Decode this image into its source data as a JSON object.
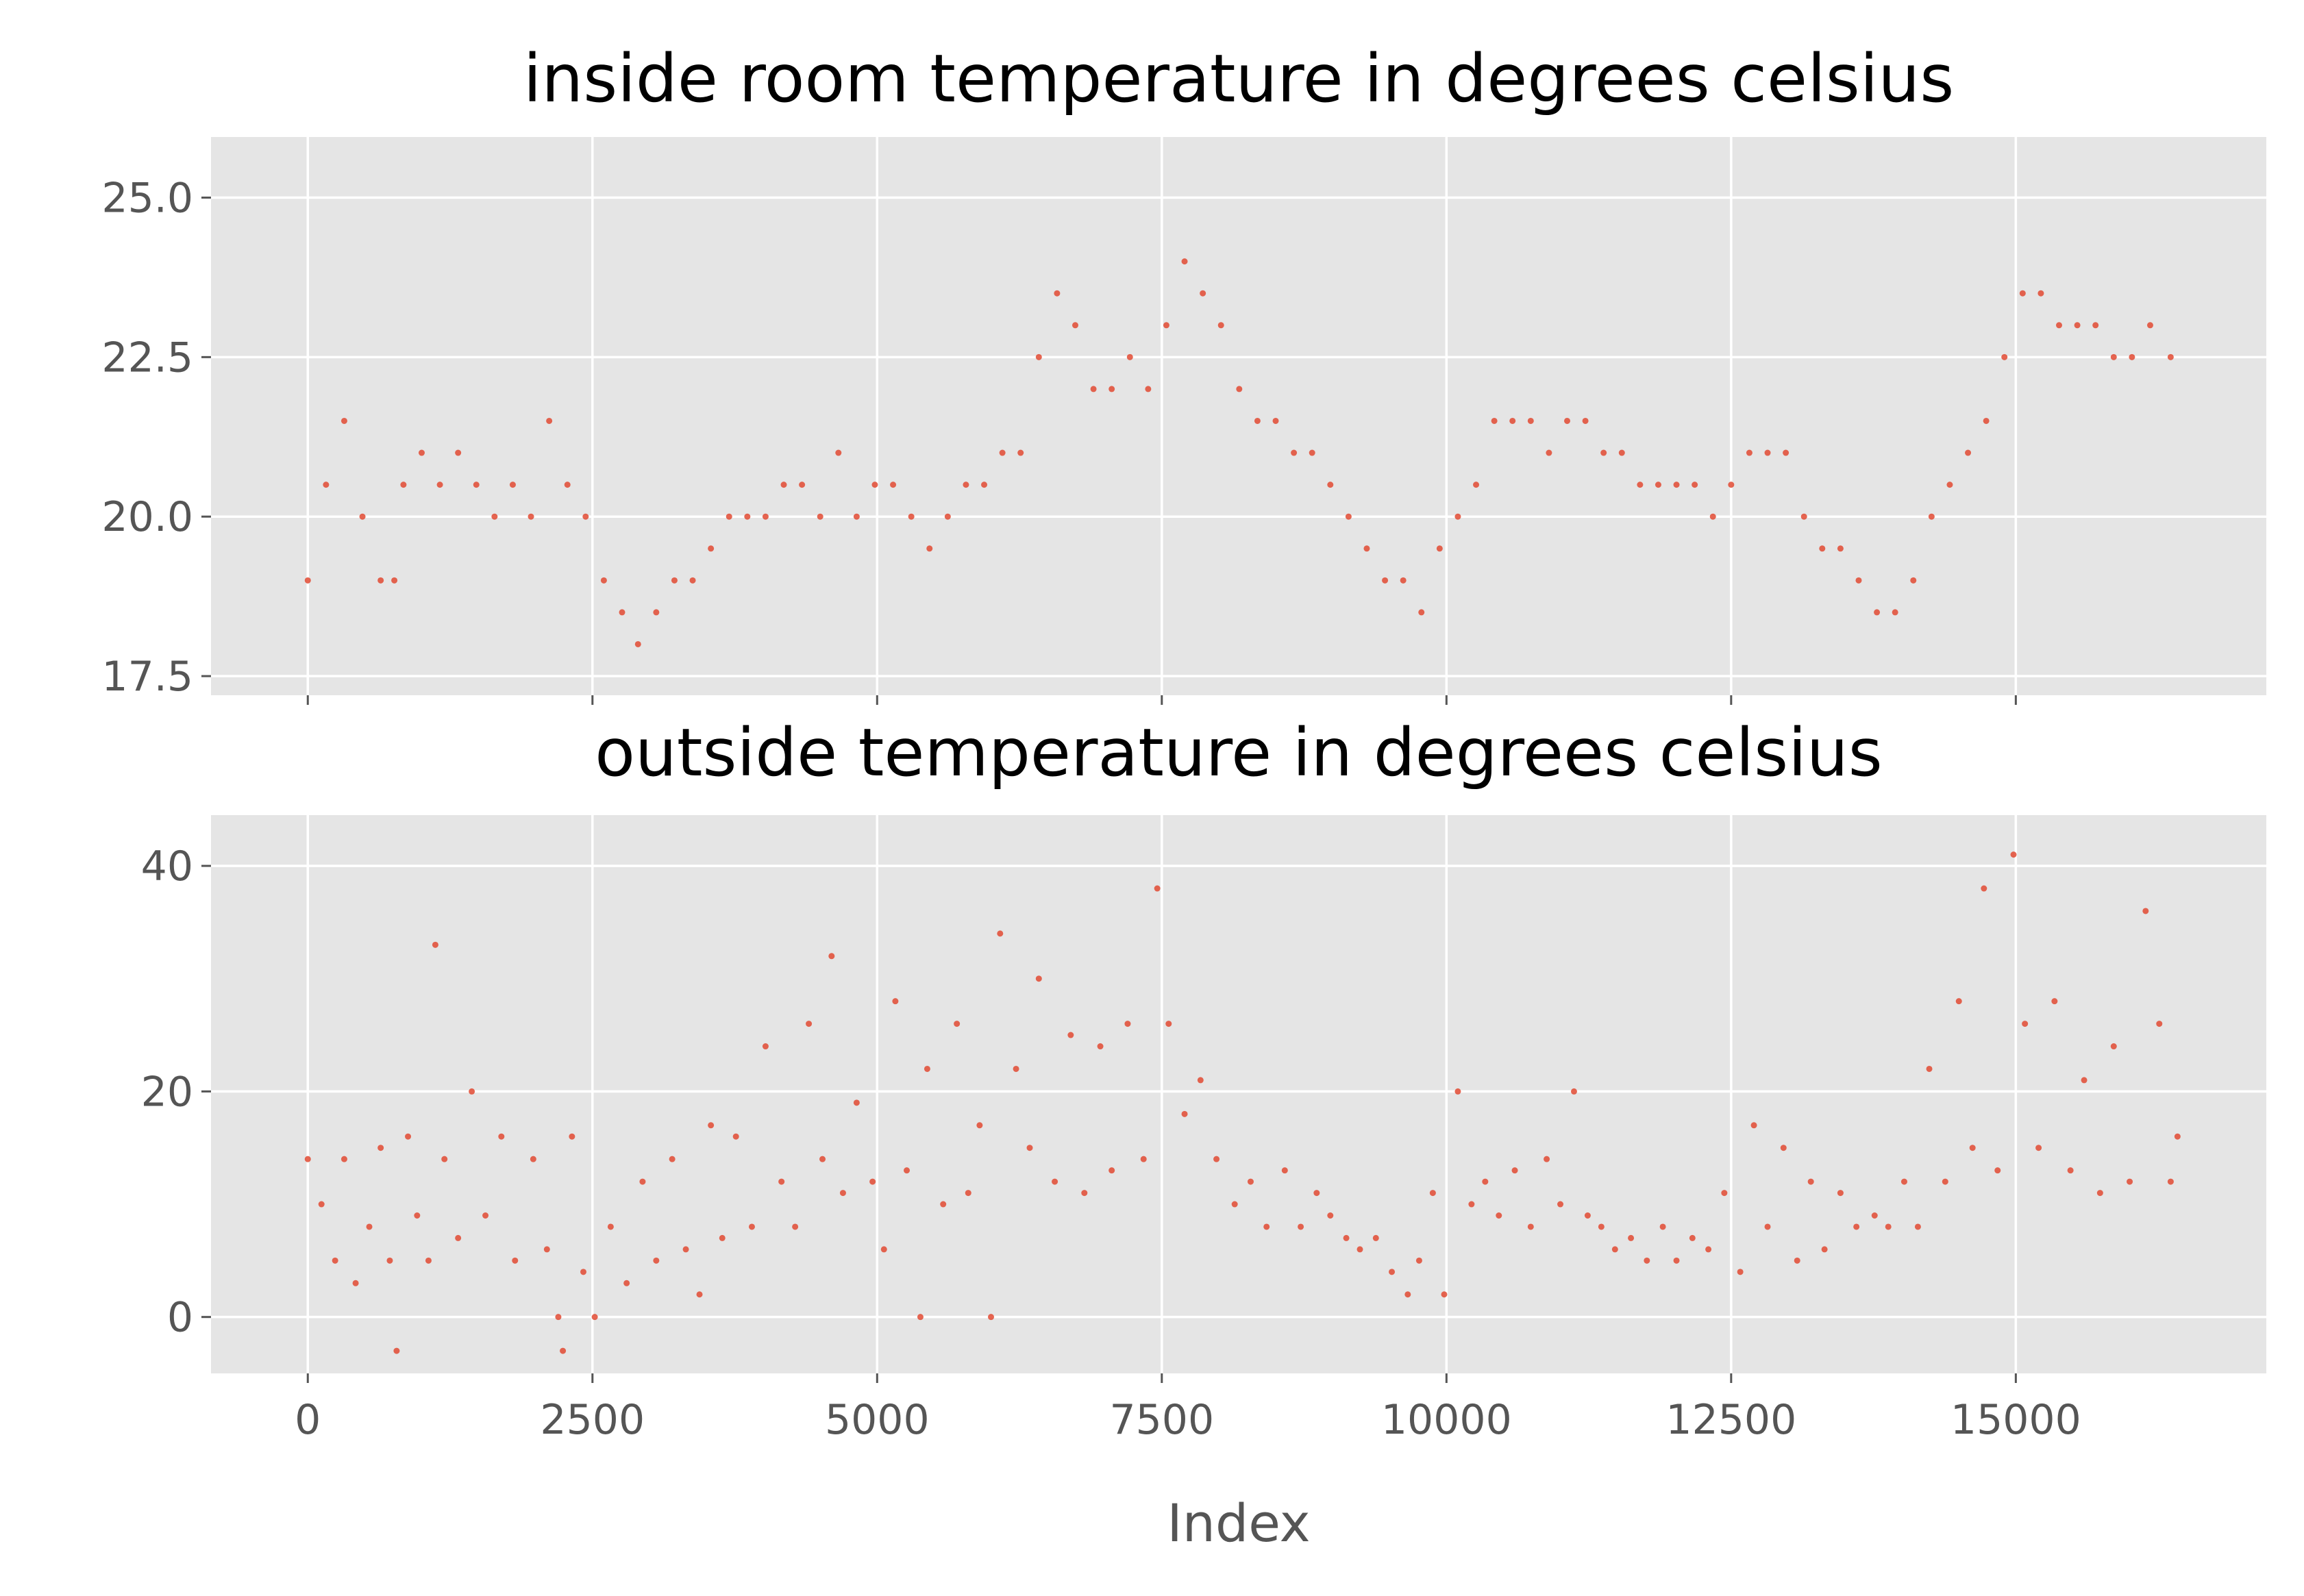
{
  "chart_data": [
    {
      "type": "scatter",
      "title": "inside room temperature in degrees celsius",
      "xlabel": "",
      "ylabel": "",
      "xlim": [
        -850,
        17200
      ],
      "ylim": [
        17.2,
        25.95
      ],
      "yticks": [
        "17.5",
        "20.0",
        "22.5",
        "25.0"
      ],
      "xticks": [
        0,
        2500,
        5000,
        7500,
        10000,
        12500,
        15000
      ],
      "grid": true,
      "marker_color": "#E24A33",
      "points": [
        [
          0,
          19.0
        ],
        [
          160,
          20.5
        ],
        [
          320,
          21.5
        ],
        [
          480,
          20.0
        ],
        [
          640,
          19.0
        ],
        [
          760,
          19.0
        ],
        [
          840,
          20.5
        ],
        [
          1000,
          21.0
        ],
        [
          1160,
          20.5
        ],
        [
          1320,
          21.0
        ],
        [
          1480,
          20.5
        ],
        [
          1640,
          20.0
        ],
        [
          1800,
          20.5
        ],
        [
          1960,
          20.0
        ],
        [
          2120,
          21.5
        ],
        [
          2280,
          20.5
        ],
        [
          2440,
          20.0
        ],
        [
          2600,
          19.0
        ],
        [
          2760,
          18.5
        ],
        [
          2900,
          18.0
        ],
        [
          3060,
          18.5
        ],
        [
          3220,
          19.0
        ],
        [
          3380,
          19.0
        ],
        [
          3540,
          19.5
        ],
        [
          3700,
          20.0
        ],
        [
          3860,
          20.0
        ],
        [
          4020,
          20.0
        ],
        [
          4180,
          20.5
        ],
        [
          4340,
          20.5
        ],
        [
          4500,
          20.0
        ],
        [
          4660,
          21.0
        ],
        [
          4820,
          20.0
        ],
        [
          4980,
          20.5
        ],
        [
          5140,
          20.5
        ],
        [
          5300,
          20.0
        ],
        [
          5460,
          19.5
        ],
        [
          5620,
          20.0
        ],
        [
          5780,
          20.5
        ],
        [
          5940,
          20.5
        ],
        [
          6100,
          21.0
        ],
        [
          6260,
          21.0
        ],
        [
          6420,
          22.5
        ],
        [
          6580,
          23.5
        ],
        [
          6740,
          23.0
        ],
        [
          6900,
          22.0
        ],
        [
          7060,
          22.0
        ],
        [
          7220,
          22.5
        ],
        [
          7380,
          22.0
        ],
        [
          7540,
          23.0
        ],
        [
          7700,
          24.0
        ],
        [
          7860,
          23.5
        ],
        [
          8020,
          23.0
        ],
        [
          8180,
          22.0
        ],
        [
          8340,
          21.5
        ],
        [
          8500,
          21.5
        ],
        [
          8660,
          21.0
        ],
        [
          8820,
          21.0
        ],
        [
          8980,
          20.5
        ],
        [
          9140,
          20.0
        ],
        [
          9300,
          19.5
        ],
        [
          9460,
          19.0
        ],
        [
          9620,
          19.0
        ],
        [
          9780,
          18.5
        ],
        [
          9940,
          19.5
        ],
        [
          10100,
          20.0
        ],
        [
          10260,
          20.5
        ],
        [
          10420,
          21.5
        ],
        [
          10580,
          21.5
        ],
        [
          10740,
          21.5
        ],
        [
          10900,
          21.0
        ],
        [
          11060,
          21.5
        ],
        [
          11220,
          21.5
        ],
        [
          11380,
          21.0
        ],
        [
          11540,
          21.0
        ],
        [
          11700,
          20.5
        ],
        [
          11860,
          20.5
        ],
        [
          12020,
          20.5
        ],
        [
          12180,
          20.5
        ],
        [
          12340,
          20.0
        ],
        [
          12500,
          20.5
        ],
        [
          12660,
          21.0
        ],
        [
          12820,
          21.0
        ],
        [
          12980,
          21.0
        ],
        [
          13140,
          20.0
        ],
        [
          13300,
          19.5
        ],
        [
          13460,
          19.5
        ],
        [
          13620,
          19.0
        ],
        [
          13780,
          18.5
        ],
        [
          13940,
          18.5
        ],
        [
          14100,
          19.0
        ],
        [
          14260,
          20.0
        ],
        [
          14420,
          20.5
        ],
        [
          14580,
          21.0
        ],
        [
          14740,
          21.5
        ],
        [
          14900,
          22.5
        ],
        [
          15060,
          23.5
        ],
        [
          15220,
          23.5
        ],
        [
          15380,
          23.0
        ],
        [
          15540,
          23.0
        ],
        [
          15700,
          23.0
        ],
        [
          15860,
          22.5
        ],
        [
          16020,
          22.5
        ],
        [
          16180,
          23.0
        ],
        [
          16360,
          22.5
        ]
      ]
    },
    {
      "type": "scatter",
      "title": "outside temperature in degrees celsius",
      "xlabel": "Index",
      "ylabel": "",
      "xlim": [
        -850,
        17200
      ],
      "ylim": [
        -5,
        44.5
      ],
      "yticks": [
        "0",
        "20",
        "40"
      ],
      "xticks": [
        0,
        2500,
        5000,
        7500,
        10000,
        12500,
        15000
      ],
      "xticklabels": [
        "0",
        "2500",
        "5000",
        "7500",
        "10000",
        "12500",
        "15000"
      ],
      "grid": true,
      "marker_color": "#E24A33",
      "points": [
        [
          0,
          14
        ],
        [
          120,
          10
        ],
        [
          240,
          5
        ],
        [
          320,
          14
        ],
        [
          420,
          3
        ],
        [
          540,
          8
        ],
        [
          640,
          15
        ],
        [
          720,
          5
        ],
        [
          780,
          -3
        ],
        [
          880,
          16
        ],
        [
          960,
          9
        ],
        [
          1060,
          5
        ],
        [
          1120,
          33
        ],
        [
          1200,
          14
        ],
        [
          1320,
          7
        ],
        [
          1440,
          20
        ],
        [
          1560,
          9
        ],
        [
          1700,
          16
        ],
        [
          1820,
          5
        ],
        [
          1980,
          14
        ],
        [
          2100,
          6
        ],
        [
          2200,
          0
        ],
        [
          2240,
          -3
        ],
        [
          2320,
          16
        ],
        [
          2420,
          4
        ],
        [
          2520,
          0
        ],
        [
          2660,
          8
        ],
        [
          2800,
          3
        ],
        [
          2940,
          12
        ],
        [
          3060,
          5
        ],
        [
          3200,
          14
        ],
        [
          3320,
          6
        ],
        [
          3440,
          2
        ],
        [
          3540,
          17
        ],
        [
          3640,
          7
        ],
        [
          3760,
          16
        ],
        [
          3900,
          8
        ],
        [
          4020,
          24
        ],
        [
          4160,
          12
        ],
        [
          4280,
          8
        ],
        [
          4400,
          26
        ],
        [
          4520,
          14
        ],
        [
          4600,
          32
        ],
        [
          4700,
          11
        ],
        [
          4820,
          19
        ],
        [
          4960,
          12
        ],
        [
          5060,
          6
        ],
        [
          5160,
          28
        ],
        [
          5260,
          13
        ],
        [
          5380,
          0
        ],
        [
          5440,
          22
        ],
        [
          5580,
          10
        ],
        [
          5700,
          26
        ],
        [
          5800,
          11
        ],
        [
          5900,
          17
        ],
        [
          6000,
          0
        ],
        [
          6080,
          34
        ],
        [
          6220,
          22
        ],
        [
          6340,
          15
        ],
        [
          6420,
          30
        ],
        [
          6560,
          12
        ],
        [
          6700,
          25
        ],
        [
          6820,
          11
        ],
        [
          6960,
          24
        ],
        [
          7060,
          13
        ],
        [
          7200,
          26
        ],
        [
          7340,
          14
        ],
        [
          7460,
          38
        ],
        [
          7560,
          26
        ],
        [
          7700,
          18
        ],
        [
          7840,
          21
        ],
        [
          7980,
          14
        ],
        [
          8140,
          10
        ],
        [
          8280,
          12
        ],
        [
          8420,
          8
        ],
        [
          8580,
          13
        ],
        [
          8720,
          8
        ],
        [
          8860,
          11
        ],
        [
          8980,
          9
        ],
        [
          9120,
          7
        ],
        [
          9240,
          6
        ],
        [
          9380,
          7
        ],
        [
          9520,
          4
        ],
        [
          9660,
          2
        ],
        [
          9760,
          5
        ],
        [
          9880,
          11
        ],
        [
          9980,
          2
        ],
        [
          10100,
          20
        ],
        [
          10220,
          10
        ],
        [
          10340,
          12
        ],
        [
          10460,
          9
        ],
        [
          10600,
          13
        ],
        [
          10740,
          8
        ],
        [
          10880,
          14
        ],
        [
          11000,
          10
        ],
        [
          11120,
          20
        ],
        [
          11240,
          9
        ],
        [
          11360,
          8
        ],
        [
          11480,
          6
        ],
        [
          11620,
          7
        ],
        [
          11760,
          5
        ],
        [
          11900,
          8
        ],
        [
          12020,
          5
        ],
        [
          12160,
          7
        ],
        [
          12300,
          6
        ],
        [
          12440,
          11
        ],
        [
          12580,
          4
        ],
        [
          12700,
          17
        ],
        [
          12820,
          8
        ],
        [
          12960,
          15
        ],
        [
          13080,
          5
        ],
        [
          13200,
          12
        ],
        [
          13320,
          6
        ],
        [
          13460,
          11
        ],
        [
          13600,
          8
        ],
        [
          13760,
          9
        ],
        [
          13880,
          8
        ],
        [
          14020,
          12
        ],
        [
          14140,
          8
        ],
        [
          14240,
          22
        ],
        [
          14380,
          12
        ],
        [
          14500,
          28
        ],
        [
          14620,
          15
        ],
        [
          14720,
          38
        ],
        [
          14840,
          13
        ],
        [
          14980,
          41
        ],
        [
          15080,
          26
        ],
        [
          15200,
          15
        ],
        [
          15340,
          28
        ],
        [
          15480,
          13
        ],
        [
          15600,
          21
        ],
        [
          15740,
          11
        ],
        [
          15860,
          24
        ],
        [
          16000,
          12
        ],
        [
          16140,
          36
        ],
        [
          16260,
          26
        ],
        [
          16360,
          12
        ],
        [
          16420,
          16
        ]
      ]
    }
  ]
}
